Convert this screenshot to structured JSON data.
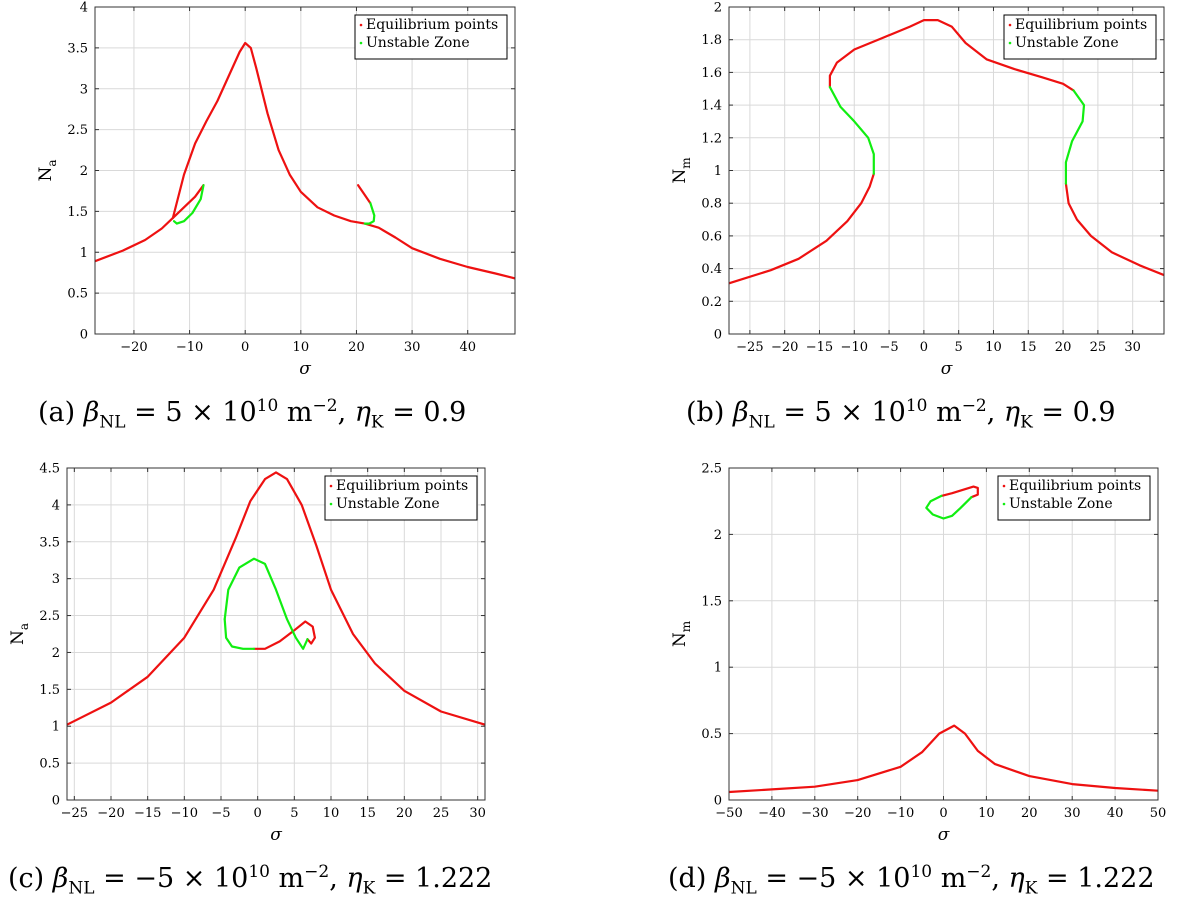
{
  "colors": {
    "stable": "#ee1111",
    "unstable": "#11ee11",
    "grid": "#d9d9d9",
    "axis": "#333333"
  },
  "chart_data": [
    {
      "type": "line",
      "xlabel": "σ",
      "ylabel_main": "N",
      "ylabel_sub": "a",
      "xlim": [
        -27,
        48.5
      ],
      "ylim": [
        0,
        4
      ],
      "xticks": [
        -20,
        -10,
        0,
        10,
        20,
        30,
        40
      ],
      "xtick_labels": [
        "−20",
        "−10",
        "0",
        "10",
        "20",
        "30",
        "40"
      ],
      "yticks": [
        0,
        0.5,
        1,
        1.5,
        2,
        2.5,
        3,
        3.5,
        4
      ],
      "ytick_labels": [
        "0",
        "0.5",
        "1",
        "1.5",
        "2",
        "2.5",
        "3",
        "3.5",
        "4"
      ],
      "grid": true,
      "legend_position": "top-right",
      "legend": [
        "Equilibrium points",
        "Unstable Zone"
      ],
      "series": [
        {
          "name": "Equilibrium points",
          "segments": [
            [
              [
                -27,
                0.89
              ],
              [
                -22,
                1.02
              ],
              [
                -18,
                1.15
              ],
              [
                -15,
                1.29
              ],
              [
                -13,
                1.42
              ]
            ],
            [
              [
                -13,
                1.42
              ],
              [
                -11,
                1.95
              ],
              [
                -9,
                2.33
              ],
              [
                -7,
                2.6
              ],
              [
                -5,
                2.85
              ],
              [
                -3,
                3.15
              ],
              [
                -1,
                3.45
              ],
              [
                0,
                3.56
              ],
              [
                1,
                3.5
              ],
              [
                2,
                3.25
              ],
              [
                4,
                2.7
              ],
              [
                6,
                2.25
              ],
              [
                8,
                1.95
              ],
              [
                10,
                1.74
              ],
              [
                13,
                1.55
              ],
              [
                16,
                1.45
              ],
              [
                19,
                1.38
              ],
              [
                21.5,
                1.35
              ],
              [
                24,
                1.3
              ],
              [
                27,
                1.18
              ],
              [
                30,
                1.05
              ],
              [
                35,
                0.92
              ],
              [
                40,
                0.82
              ],
              [
                45,
                0.74
              ],
              [
                48.5,
                0.68
              ]
            ],
            [
              [
                -13,
                1.42
              ],
              [
                -11,
                1.55
              ],
              [
                -9,
                1.68
              ],
              [
                -7.5,
                1.82
              ]
            ],
            [
              [
                20.3,
                1.82
              ],
              [
                21.5,
                1.7
              ],
              [
                22.5,
                1.6
              ]
            ]
          ]
        },
        {
          "name": "Unstable Zone",
          "segments": [
            [
              [
                -7.5,
                1.82
              ],
              [
                -8,
                1.65
              ],
              [
                -9.5,
                1.48
              ],
              [
                -11,
                1.38
              ],
              [
                -12.3,
                1.35
              ],
              [
                -12.8,
                1.38
              ]
            ],
            [
              [
                22.5,
                1.6
              ],
              [
                23.2,
                1.45
              ],
              [
                23.1,
                1.38
              ],
              [
                22.3,
                1.35
              ],
              [
                21.5,
                1.35
              ]
            ]
          ]
        }
      ]
    },
    {
      "type": "line",
      "xlabel": "σ",
      "ylabel_main": "N",
      "ylabel_sub": "m",
      "xlim": [
        -28,
        34.5
      ],
      "ylim": [
        0,
        2
      ],
      "xticks": [
        -25,
        -20,
        -15,
        -10,
        -5,
        0,
        5,
        10,
        15,
        20,
        25,
        30
      ],
      "xtick_labels": [
        "−25",
        "−20",
        "−15",
        "−10",
        "−5",
        "0",
        "5",
        "10",
        "15",
        "20",
        "25",
        "30"
      ],
      "yticks": [
        0,
        0.2,
        0.4,
        0.6,
        0.8,
        1,
        1.2,
        1.4,
        1.6,
        1.8,
        2
      ],
      "ytick_labels": [
        "0",
        "0.2",
        "0.4",
        "0.6",
        "0.8",
        "1",
        "1.2",
        "1.4",
        "1.6",
        "1.8",
        "2"
      ],
      "grid": true,
      "legend_position": "top-right",
      "legend": [
        "Equilibrium points",
        "Unstable Zone"
      ],
      "series": [
        {
          "name": "Equilibrium points",
          "segments": [
            [
              [
                -28,
                0.31
              ],
              [
                -22,
                0.39
              ],
              [
                -18,
                0.46
              ],
              [
                -14,
                0.57
              ],
              [
                -11,
                0.69
              ],
              [
                -9,
                0.8
              ],
              [
                -7.8,
                0.9
              ],
              [
                -7.2,
                0.98
              ]
            ],
            [
              [
                -13.5,
                1.51
              ],
              [
                -13.5,
                1.58
              ],
              [
                -12.5,
                1.66
              ],
              [
                -10,
                1.74
              ],
              [
                -6,
                1.81
              ],
              [
                -2,
                1.88
              ],
              [
                0,
                1.92
              ],
              [
                2,
                1.92
              ],
              [
                4,
                1.88
              ],
              [
                6,
                1.78
              ],
              [
                9,
                1.68
              ],
              [
                13,
                1.62
              ],
              [
                17,
                1.57
              ],
              [
                20,
                1.53
              ],
              [
                21.5,
                1.49
              ]
            ],
            [
              [
                20.4,
                0.92
              ],
              [
                20.8,
                0.8
              ],
              [
                22,
                0.7
              ],
              [
                24,
                0.6
              ],
              [
                27,
                0.5
              ],
              [
                31,
                0.42
              ],
              [
                34.5,
                0.36
              ]
            ]
          ]
        },
        {
          "name": "Unstable Zone",
          "segments": [
            [
              [
                -7.2,
                0.98
              ],
              [
                -7.2,
                1.1
              ],
              [
                -8,
                1.2
              ],
              [
                -10,
                1.3
              ],
              [
                -12,
                1.39
              ],
              [
                -13.5,
                1.51
              ]
            ],
            [
              [
                21.5,
                1.49
              ],
              [
                23,
                1.4
              ],
              [
                22.8,
                1.3
              ],
              [
                21.3,
                1.18
              ],
              [
                20.4,
                1.05
              ],
              [
                20.4,
                0.92
              ]
            ]
          ]
        }
      ]
    },
    {
      "type": "line",
      "xlabel": "σ",
      "ylabel_main": "N",
      "ylabel_sub": "a",
      "xlim": [
        -26,
        31
      ],
      "ylim": [
        0,
        4.5
      ],
      "xticks": [
        -25,
        -20,
        -15,
        -10,
        -5,
        0,
        5,
        10,
        15,
        20,
        25,
        30
      ],
      "xtick_labels": [
        "−25",
        "−20",
        "−15",
        "−10",
        "−5",
        "0",
        "5",
        "10",
        "15",
        "20",
        "25",
        "30"
      ],
      "yticks": [
        0,
        0.5,
        1,
        1.5,
        2,
        2.5,
        3,
        3.5,
        4,
        4.5
      ],
      "ytick_labels": [
        "0",
        "0.5",
        "1",
        "1.5",
        "2",
        "2.5",
        "3",
        "3.5",
        "4",
        "4.5"
      ],
      "grid": true,
      "legend_position": "top-right",
      "legend": [
        "Equilibrium points",
        "Unstable Zone"
      ],
      "series": [
        {
          "name": "Equilibrium points",
          "segments": [
            [
              [
                -26,
                1.02
              ],
              [
                -20,
                1.32
              ],
              [
                -15,
                1.67
              ],
              [
                -10,
                2.2
              ],
              [
                -6,
                2.85
              ],
              [
                -3,
                3.55
              ],
              [
                -1,
                4.05
              ],
              [
                1,
                4.35
              ],
              [
                2.5,
                4.44
              ],
              [
                4,
                4.35
              ],
              [
                6,
                4.0
              ],
              [
                8,
                3.45
              ],
              [
                10,
                2.85
              ],
              [
                13,
                2.25
              ],
              [
                16,
                1.85
              ],
              [
                20,
                1.48
              ],
              [
                25,
                1.2
              ],
              [
                31,
                1.02
              ]
            ],
            [
              [
                -0.5,
                2.05
              ],
              [
                1,
                2.05
              ],
              [
                3,
                2.15
              ],
              [
                5,
                2.3
              ],
              [
                6.5,
                2.42
              ],
              [
                7.5,
                2.35
              ],
              [
                7.8,
                2.2
              ],
              [
                7.3,
                2.12
              ],
              [
                6.8,
                2.18
              ]
            ]
          ]
        },
        {
          "name": "Unstable Zone",
          "segments": [
            [
              [
                -4.5,
                2.45
              ],
              [
                -4,
                2.85
              ],
              [
                -2.5,
                3.15
              ],
              [
                -0.5,
                3.27
              ],
              [
                1,
                3.2
              ],
              [
                2.5,
                2.85
              ],
              [
                4,
                2.45
              ],
              [
                5.2,
                2.2
              ],
              [
                6.2,
                2.05
              ],
              [
                6.8,
                2.18
              ]
            ],
            [
              [
                -4.5,
                2.45
              ],
              [
                -4.3,
                2.2
              ],
              [
                -3.5,
                2.08
              ],
              [
                -2,
                2.05
              ],
              [
                -0.5,
                2.05
              ]
            ]
          ]
        }
      ]
    },
    {
      "type": "line",
      "xlabel": "σ",
      "ylabel_main": "N",
      "ylabel_sub": "m",
      "xlim": [
        -50,
        50
      ],
      "ylim": [
        0,
        2.5
      ],
      "xticks": [
        -50,
        -40,
        -30,
        -20,
        -10,
        0,
        10,
        20,
        30,
        40,
        50
      ],
      "xtick_labels": [
        "−50",
        "−40",
        "−30",
        "−20",
        "−10",
        "0",
        "10",
        "20",
        "30",
        "40",
        "50"
      ],
      "yticks": [
        0,
        0.5,
        1,
        1.5,
        2,
        2.5
      ],
      "ytick_labels": [
        "0",
        "0.5",
        "1",
        "1.5",
        "2",
        "2.5"
      ],
      "grid": true,
      "legend_position": "top-right",
      "legend": [
        "Equilibrium points",
        "Unstable Zone"
      ],
      "series": [
        {
          "name": "Equilibrium points",
          "segments": [
            [
              [
                -50,
                0.06
              ],
              [
                -40,
                0.08
              ],
              [
                -30,
                0.1
              ],
              [
                -20,
                0.15
              ],
              [
                -10,
                0.25
              ],
              [
                -5,
                0.36
              ],
              [
                -1,
                0.5
              ],
              [
                2.5,
                0.56
              ],
              [
                5,
                0.5
              ],
              [
                8,
                0.37
              ],
              [
                12,
                0.27
              ],
              [
                20,
                0.18
              ],
              [
                30,
                0.12
              ],
              [
                40,
                0.09
              ],
              [
                50,
                0.07
              ]
            ],
            [
              [
                -0.5,
                2.29
              ],
              [
                2,
                2.31
              ],
              [
                5,
                2.34
              ],
              [
                7,
                2.36
              ],
              [
                8,
                2.35
              ],
              [
                8,
                2.3
              ],
              [
                6.5,
                2.28
              ]
            ]
          ]
        },
        {
          "name": "Unstable Zone",
          "segments": [
            [
              [
                -0.5,
                2.29
              ],
              [
                -3,
                2.25
              ],
              [
                -4,
                2.2
              ],
              [
                -2.5,
                2.15
              ],
              [
                0,
                2.12
              ],
              [
                2,
                2.14
              ],
              [
                4,
                2.2
              ],
              [
                6.5,
                2.28
              ]
            ]
          ]
        }
      ]
    }
  ],
  "captions": [
    {
      "label": "(a)",
      "beta_sym": "β",
      "beta_sub": "NL",
      "eq": " = 5 × 10",
      "exp": "10",
      "unit": " m",
      "unit_exp": "−2",
      "sep": ", ",
      "eta_sym": "η",
      "eta_sub": "K",
      "eta_val": " = 0.9"
    },
    {
      "label": "(b)",
      "beta_sym": "β",
      "beta_sub": "NL",
      "eq": " = 5 × 10",
      "exp": "10",
      "unit": " m",
      "unit_exp": "−2",
      "sep": ", ",
      "eta_sym": "η",
      "eta_sub": "K",
      "eta_val": " = 0.9"
    },
    {
      "label": "(c)",
      "beta_sym": "β",
      "beta_sub": "NL",
      "eq": " = −5 × 10",
      "exp": "10",
      "unit": " m",
      "unit_exp": "−2",
      "sep": ", ",
      "eta_sym": "η",
      "eta_sub": "K",
      "eta_val": " = 1.222"
    },
    {
      "label": "(d)",
      "beta_sym": "β",
      "beta_sub": "NL",
      "eq": " = −5 × 10",
      "exp": "10",
      "unit": " m",
      "unit_exp": "−2",
      "sep": ", ",
      "eta_sym": "η",
      "eta_sub": "K",
      "eta_val": " = 1.222"
    }
  ]
}
